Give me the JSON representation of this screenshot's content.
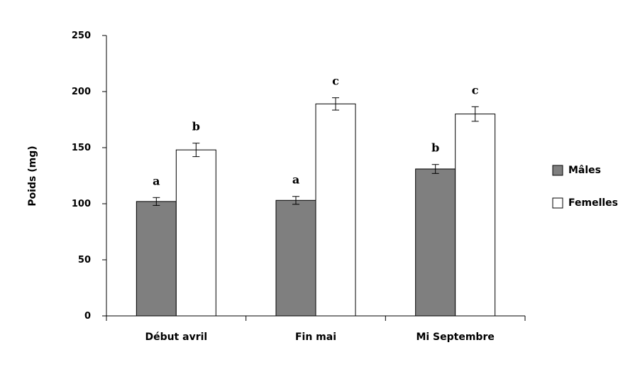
{
  "chart_data": {
    "type": "bar",
    "ylabel": "Poids (mg)",
    "xlabel": "",
    "ylim": [
      0,
      250
    ],
    "yticks": [
      0,
      50,
      100,
      150,
      200,
      250
    ],
    "categories": [
      "Début avril",
      "Fin mai",
      "Mi Septembre"
    ],
    "series": [
      {
        "name": "Mâles",
        "color": "#7f7f7f",
        "values": [
          102,
          103,
          131
        ],
        "errors": [
          3.5,
          3.5,
          4
        ],
        "letters": [
          "a",
          "a",
          "b"
        ]
      },
      {
        "name": "Femelles",
        "color": "#ffffff",
        "values": [
          148,
          189,
          180
        ],
        "errors": [
          6,
          5.5,
          6.5
        ],
        "letters": [
          "b",
          "c",
          "c"
        ]
      }
    ],
    "legend_position": "right",
    "grid": false
  }
}
